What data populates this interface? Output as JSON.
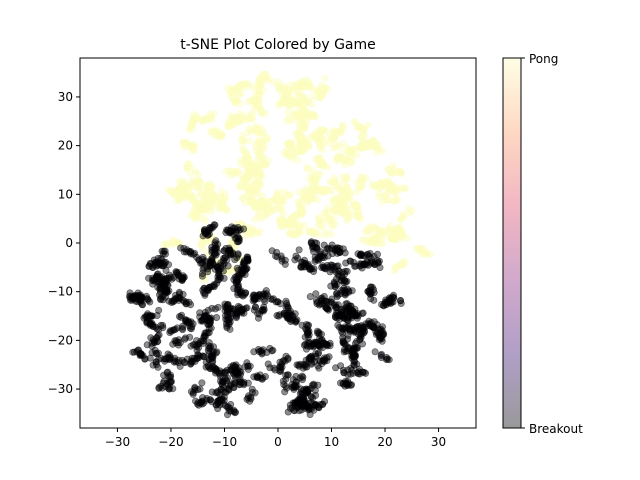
{
  "chart_data": {
    "type": "scatter",
    "title": "t-SNE Plot Colored by Game",
    "xlabel": "",
    "ylabel": "",
    "xlim": [
      -37,
      37
    ],
    "ylim": [
      -38,
      38
    ],
    "xticks": [
      -30,
      -20,
      -10,
      0,
      10,
      20,
      30
    ],
    "yticks": [
      -30,
      -20,
      -10,
      0,
      10,
      20,
      30
    ],
    "grid": false,
    "colorbar": {
      "labels": [
        "Breakout",
        "Pong"
      ],
      "colors": [
        "#000004",
        "#3b0f70",
        "#8c2981",
        "#de4968",
        "#fe9f6d",
        "#fcfdbf"
      ]
    },
    "series": [
      {
        "color": "#fcfdbf",
        "region": {
          "x": [
            -34,
            33
          ],
          "y": [
            -6,
            34
          ]
        },
        "approx_count": 1800
      },
      {
        "color": "#000004",
        "region": {
          "x": [
            -30,
            23
          ],
          "y": [
            -34,
            5
          ]
        },
        "approx_count": 1800
      }
    ]
  }
}
